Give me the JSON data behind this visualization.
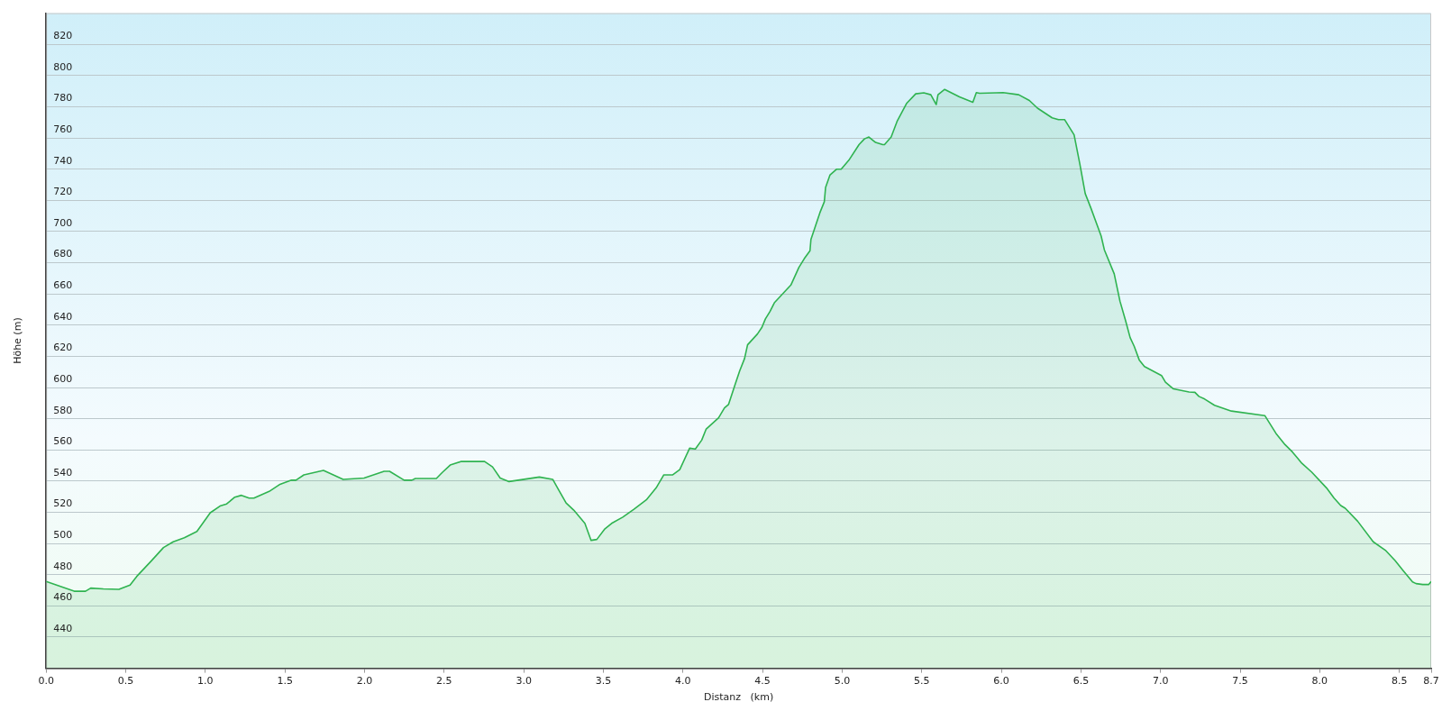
{
  "chart_data": {
    "type": "area",
    "xlabel": "Distanz   (km)",
    "ylabel": "Höhe (m)",
    "color": "#2fb350",
    "marker": "none",
    "grid": "y",
    "x": [
      0,
      0.176,
      0.247,
      0.28,
      0.359,
      0.457,
      0.527,
      0.569,
      0.661,
      0.737,
      0.798,
      0.868,
      0.947,
      1.031,
      1.092,
      1.134,
      1.185,
      1.227,
      1.275,
      1.305,
      1.401,
      1.465,
      1.541,
      1.569,
      1.619,
      1.742,
      1.866,
      1.997,
      2.123,
      2.157,
      2.249,
      2.297,
      2.319,
      2.451,
      2.487,
      2.538,
      2.608,
      2.754,
      2.804,
      2.852,
      2.908,
      3.098,
      3.182,
      3.216,
      3.266,
      3.314,
      3.384,
      3.423,
      3.459,
      3.51,
      3.552,
      3.622,
      3.692,
      3.77,
      3.832,
      3.88,
      3.936,
      3.98,
      4.042,
      4.078,
      4.118,
      4.146,
      4.224,
      4.261,
      4.286,
      4.328,
      4.356,
      4.387,
      4.406,
      4.468,
      4.496,
      4.518,
      4.546,
      4.574,
      4.678,
      4.728,
      4.762,
      4.798,
      4.804,
      4.832,
      4.86,
      4.888,
      4.896,
      4.924,
      4.966,
      4.994,
      5.042,
      5.106,
      5.14,
      5.168,
      5.21,
      5.255,
      5.266,
      5.308,
      5.345,
      5.406,
      5.462,
      5.513,
      5.557,
      5.591,
      5.602,
      5.644,
      5.737,
      5.821,
      5.843,
      5.863,
      5.966,
      6.011,
      6.109,
      6.176,
      6.227,
      6.319,
      6.359,
      6.398,
      6.457,
      6.493,
      6.527,
      6.563,
      6.627,
      6.647,
      6.709,
      6.745,
      6.781,
      6.809,
      6.835,
      6.866,
      6.899,
      7.006,
      7.031,
      7.081,
      7.179,
      7.216,
      7.241,
      7.277,
      7.339,
      7.445,
      7.655,
      7.725,
      7.782,
      7.829,
      7.888,
      7.95,
      8.042,
      8.09,
      8.132,
      8.16,
      8.238,
      8.336,
      8.412,
      8.473,
      8.524,
      8.583,
      8.605,
      8.647,
      8.684,
      8.7
    ],
    "values": [
      475.7,
      469.4,
      469.4,
      471.4,
      470.9,
      470.6,
      473.4,
      478.9,
      488.9,
      497.4,
      501.1,
      503.7,
      507.7,
      519.7,
      524,
      525.4,
      529.7,
      530.9,
      529.1,
      529.1,
      533.4,
      537.7,
      540.6,
      540.6,
      544,
      546.9,
      541.1,
      542,
      546.3,
      546.3,
      540.6,
      540.6,
      541.7,
      541.7,
      545.4,
      550.3,
      552.6,
      552.6,
      549.1,
      542,
      539.7,
      542.6,
      541.1,
      534.9,
      526,
      521.4,
      512.9,
      502,
      502.6,
      509.4,
      512.9,
      516.9,
      522,
      528,
      535.7,
      544,
      544,
      547.4,
      561.1,
      560.6,
      566.3,
      573.4,
      580.6,
      586.9,
      589.1,
      602,
      610.6,
      618.6,
      627.4,
      634.3,
      638.6,
      644,
      648.6,
      654.3,
      665.7,
      676.9,
      682.6,
      687.7,
      694.9,
      703.4,
      712,
      719.1,
      728.3,
      736.3,
      740,
      740,
      745.7,
      755.7,
      759.4,
      760.6,
      757.1,
      755.7,
      755.7,
      760.6,
      770.6,
      782.3,
      788.3,
      788.9,
      787.7,
      781.4,
      787.7,
      791.1,
      786.3,
      782.9,
      789.1,
      788.6,
      788.9,
      789.1,
      787.7,
      784,
      779.1,
      772.9,
      771.7,
      771.7,
      762,
      743.4,
      724.3,
      714.9,
      697.1,
      688.3,
      672.9,
      655.4,
      642.6,
      632,
      626.3,
      617.7,
      613.4,
      607.7,
      603.4,
      599.1,
      597.1,
      596.9,
      594.3,
      592.6,
      588.6,
      584.9,
      582,
      570.6,
      563.4,
      558.6,
      551.4,
      545.7,
      535.7,
      529.1,
      524.3,
      522.6,
      514.3,
      501.1,
      495.7,
      489.1,
      482.6,
      475.4,
      474.3,
      473.7,
      473.7,
      475.7
    ],
    "xlim": [
      0,
      8.7
    ],
    "xticks": [
      {
        "value": 0,
        "label": "0.0"
      },
      {
        "value": 0.5,
        "label": "0.5"
      },
      {
        "value": 1,
        "label": "1.0"
      },
      {
        "value": 1.5,
        "label": "1.5"
      },
      {
        "value": 2,
        "label": "2.0"
      },
      {
        "value": 2.5,
        "label": "2.5"
      },
      {
        "value": 3,
        "label": "3.0"
      },
      {
        "value": 3.5,
        "label": "3.5"
      },
      {
        "value": 4,
        "label": "4.0"
      },
      {
        "value": 4.5,
        "label": "4.5"
      },
      {
        "value": 5,
        "label": "5.0"
      },
      {
        "value": 5.5,
        "label": "5.5"
      },
      {
        "value": 6,
        "label": "6.0"
      },
      {
        "value": 6.5,
        "label": "6.5"
      },
      {
        "value": 7,
        "label": "7.0"
      },
      {
        "value": 7.5,
        "label": "7.5"
      },
      {
        "value": 8,
        "label": "8.0"
      },
      {
        "value": 8.5,
        "label": "8.5"
      },
      {
        "value": 8.7,
        "label": "8.7"
      }
    ],
    "ylim": [
      420,
      840
    ],
    "yticks": [
      440,
      460,
      480,
      500,
      520,
      540,
      560,
      580,
      600,
      620,
      640,
      660,
      680,
      700,
      720,
      740,
      760,
      780,
      800,
      820
    ]
  }
}
